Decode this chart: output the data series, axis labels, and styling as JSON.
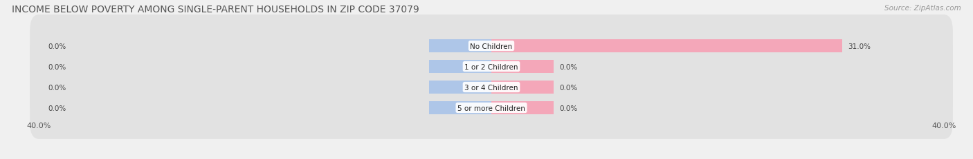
{
  "title": "INCOME BELOW POVERTY AMONG SINGLE-PARENT HOUSEHOLDS IN ZIP CODE 37079",
  "source": "Source: ZipAtlas.com",
  "categories": [
    "No Children",
    "1 or 2 Children",
    "3 or 4 Children",
    "5 or more Children"
  ],
  "single_father_values": [
    0.0,
    0.0,
    0.0,
    0.0
  ],
  "single_mother_values": [
    31.0,
    0.0,
    0.0,
    0.0
  ],
  "father_color": "#aec6e8",
  "mother_color": "#f4a7b9",
  "axis_max": 40.0,
  "axis_min": -40.0,
  "background_color": "#f0f0f0",
  "bar_background": "#e2e2e2",
  "title_fontsize": 10,
  "source_fontsize": 7.5,
  "label_fontsize": 7.5,
  "category_fontsize": 7.5,
  "legend_fontsize": 8,
  "axis_label_fontsize": 8,
  "father_stub": -5.5,
  "mother_stub": 5.5
}
